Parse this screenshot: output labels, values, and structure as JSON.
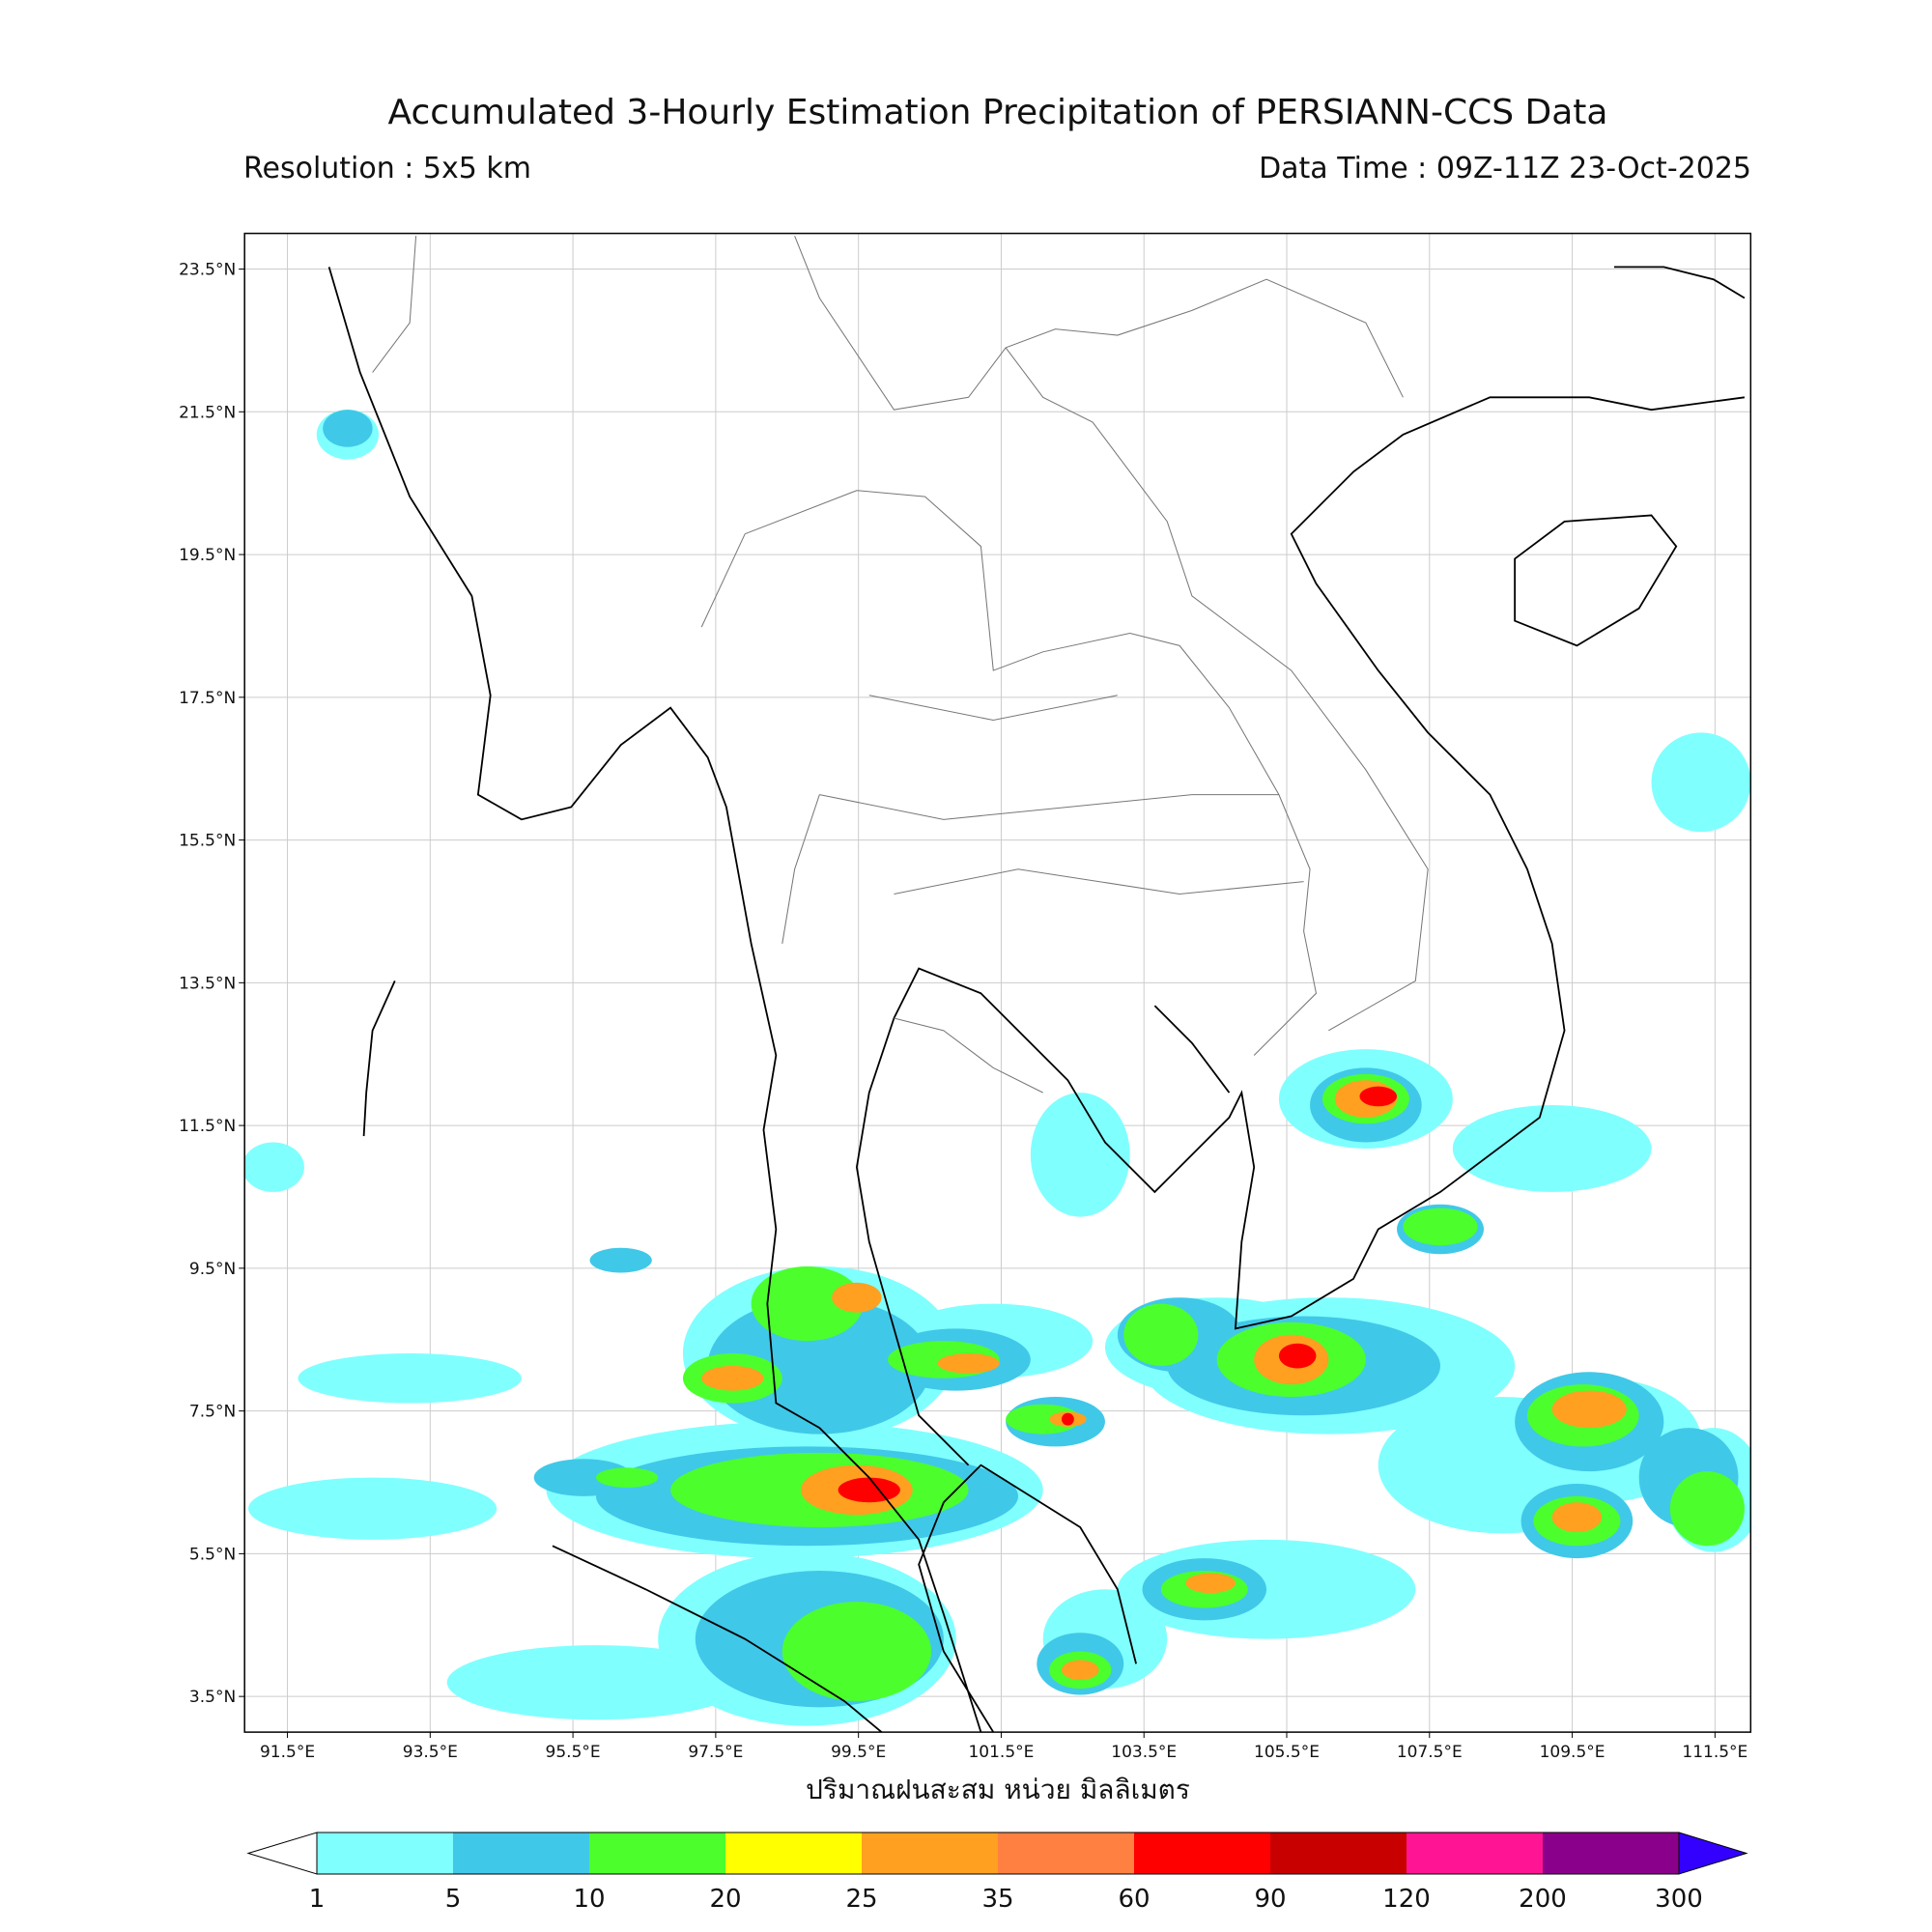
{
  "chart_data": {
    "type": "map",
    "title": "Accumulated 3-Hourly Estimation Precipitation of PERSIANN-CCS Data",
    "subtitle_left": "Resolution : 5x5 km",
    "subtitle_right": "Data Time : 09Z-11Z 23-Oct-2025",
    "xlabel": "ปริมาณฝนสะสม หน่วย มิลลิเมตร",
    "xlim": [
      90.9,
      112.0
    ],
    "ylim": [
      3.0,
      24.0
    ],
    "xticks": [
      {
        "value": 91.5,
        "label": "91.5°E"
      },
      {
        "value": 93.5,
        "label": "93.5°E"
      },
      {
        "value": 95.5,
        "label": "95.5°E"
      },
      {
        "value": 97.5,
        "label": "97.5°E"
      },
      {
        "value": 99.5,
        "label": "99.5°E"
      },
      {
        "value": 101.5,
        "label": "101.5°E"
      },
      {
        "value": 103.5,
        "label": "103.5°E"
      },
      {
        "value": 105.5,
        "label": "105.5°E"
      },
      {
        "value": 107.5,
        "label": "107.5°E"
      },
      {
        "value": 109.5,
        "label": "109.5°E"
      },
      {
        "value": 111.5,
        "label": "111.5°E"
      }
    ],
    "yticks": [
      {
        "value": 3.5,
        "label": "3.5°N"
      },
      {
        "value": 5.5,
        "label": "5.5°N"
      },
      {
        "value": 7.5,
        "label": "7.5°N"
      },
      {
        "value": 9.5,
        "label": "9.5°N"
      },
      {
        "value": 11.5,
        "label": "11.5°N"
      },
      {
        "value": 13.5,
        "label": "13.5°N"
      },
      {
        "value": 15.5,
        "label": "15.5°N"
      },
      {
        "value": 17.5,
        "label": "17.5°N"
      },
      {
        "value": 19.5,
        "label": "19.5°N"
      },
      {
        "value": 21.5,
        "label": "21.5°N"
      },
      {
        "value": 23.5,
        "label": "23.5°N"
      }
    ],
    "grid": true,
    "colorbar": {
      "levels": [
        1,
        5,
        10,
        20,
        25,
        35,
        60,
        90,
        120,
        200,
        300
      ],
      "colors": [
        "#80ffff",
        "#40c8e8",
        "#4cff2c",
        "#ffff00",
        "#ffa020",
        "#ff8040",
        "#ff0000",
        "#c80000",
        "#ff1493",
        "#8b008b"
      ],
      "under_color": "#ffffff",
      "over_color": "#3300ff"
    }
  }
}
